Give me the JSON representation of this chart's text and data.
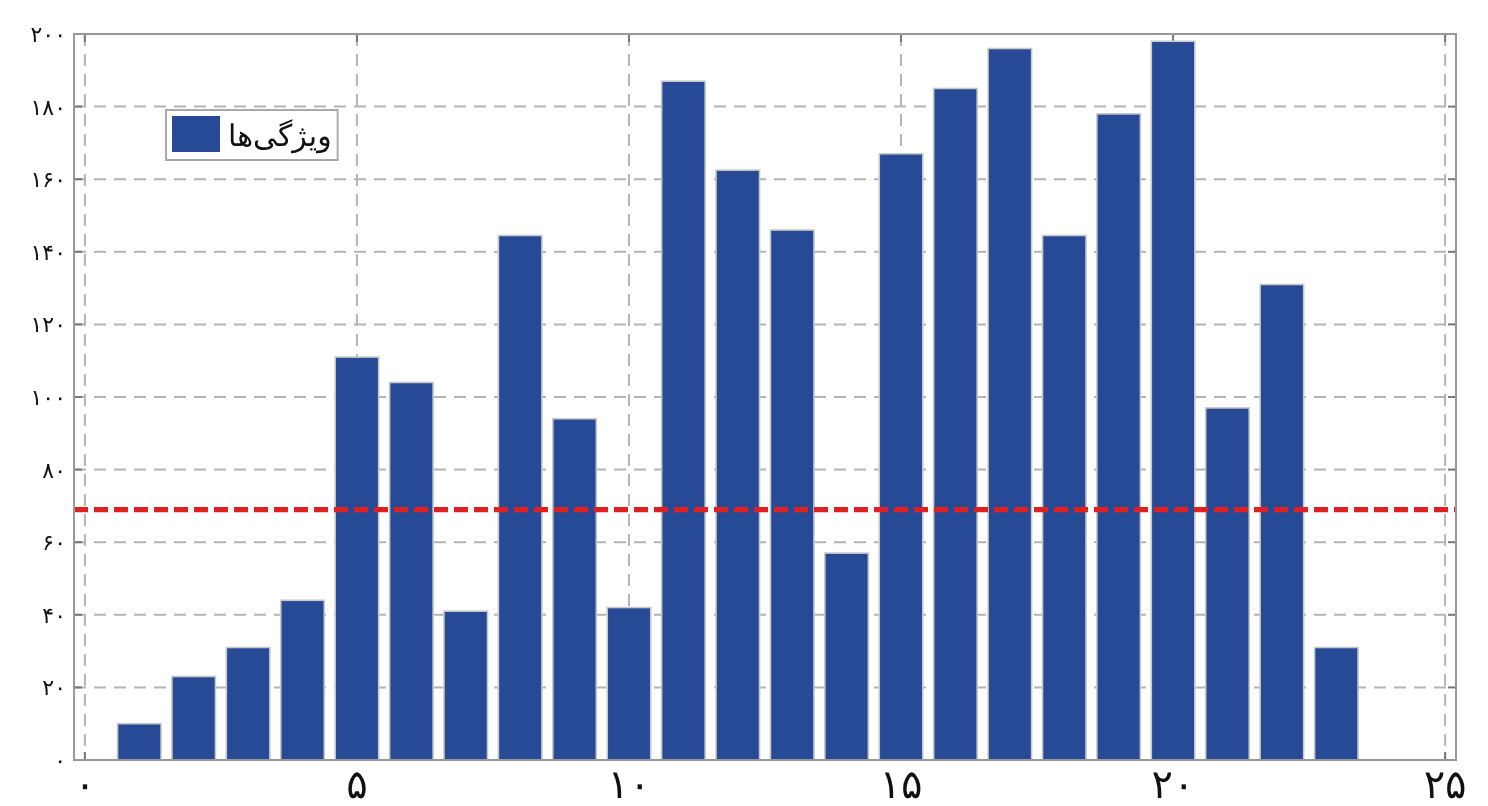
{
  "chart_data": {
    "type": "bar",
    "x": [
      1,
      2,
      3,
      4,
      5,
      6,
      7,
      8,
      9,
      10,
      11,
      12,
      13,
      14,
      15,
      16,
      17,
      18,
      19,
      20,
      21,
      22,
      23
    ],
    "series": [
      {
        "name": "ویژگی‌ها",
        "color": "#264a96",
        "values": [
          10,
          23,
          31,
          44,
          111,
          104,
          41,
          144.5,
          94,
          42,
          187,
          162.5,
          146,
          57,
          167,
          185,
          196,
          144.5,
          178,
          198,
          97,
          131,
          31
        ]
      }
    ],
    "xlim": [
      -0.2,
      25.2
    ],
    "ylim": [
      0,
      200
    ],
    "xticks": [
      {
        "value": 0,
        "label": "۰"
      },
      {
        "value": 5,
        "label": "۵"
      },
      {
        "value": 10,
        "label": "۱۰"
      },
      {
        "value": 15,
        "label": "۱۵"
      },
      {
        "value": 20,
        "label": "۲۰"
      },
      {
        "value": 25,
        "label": "۲۵"
      }
    ],
    "yticks": [
      {
        "value": 0,
        "label": "۰"
      },
      {
        "value": 20,
        "label": "۲۰"
      },
      {
        "value": 40,
        "label": "۴۰"
      },
      {
        "value": 60,
        "label": "۶۰"
      },
      {
        "value": 80,
        "label": "۸۰"
      },
      {
        "value": 100,
        "label": "۱۰۰"
      },
      {
        "value": 120,
        "label": "۱۲۰"
      },
      {
        "value": 140,
        "label": "۱۴۰"
      },
      {
        "value": 160,
        "label": "۱۶۰"
      },
      {
        "value": 180,
        "label": "۱۸۰"
      },
      {
        "value": 200,
        "label": "۲۰۰"
      }
    ],
    "ref_lines": [
      {
        "axis": "y",
        "value": 69,
        "color": "#e02020",
        "line_style": "dashed"
      }
    ],
    "grid": true,
    "legend": "top left"
  }
}
